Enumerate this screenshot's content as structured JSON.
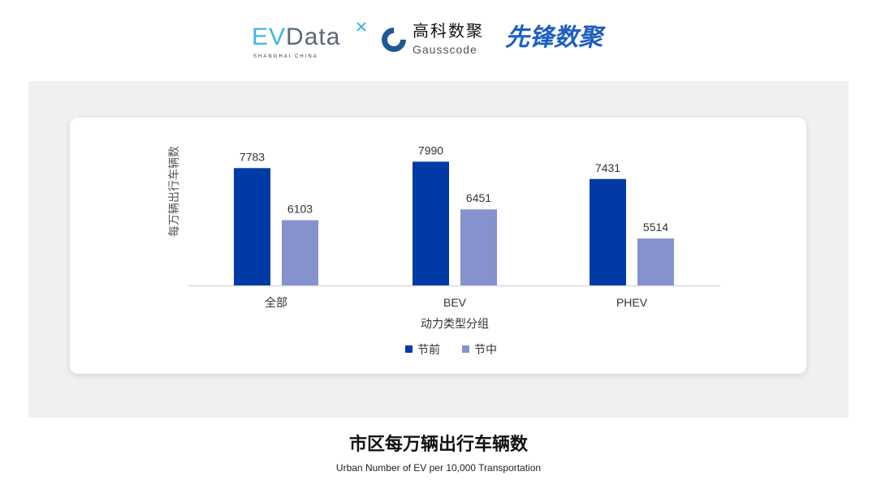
{
  "logos": {
    "evdata": "EVData",
    "evdata_sub": "SHANGHAI CHINA",
    "gausscode_cn": "高科数聚",
    "gausscode_en": "Gausscode",
    "xianfeng": "先锋数聚"
  },
  "title": "市区每万辆出行车辆数",
  "subtitle": "Urban Number of EV per 10,000 Transportation",
  "chart_data": {
    "type": "bar",
    "categories": [
      "全部",
      "BEV",
      "PHEV"
    ],
    "series": [
      {
        "name": "节前",
        "values": [
          7783,
          7990,
          7431
        ],
        "color": "#003ba5"
      },
      {
        "name": "节中",
        "values": [
          6103,
          6451,
          5514
        ],
        "color": "#8592cd"
      }
    ],
    "xlabel": "动力类型分组",
    "ylabel": "每万辆出行车辆数",
    "ylim": [
      4000,
      8000
    ],
    "grid": false,
    "legend": "bottom",
    "data_labels": true
  }
}
